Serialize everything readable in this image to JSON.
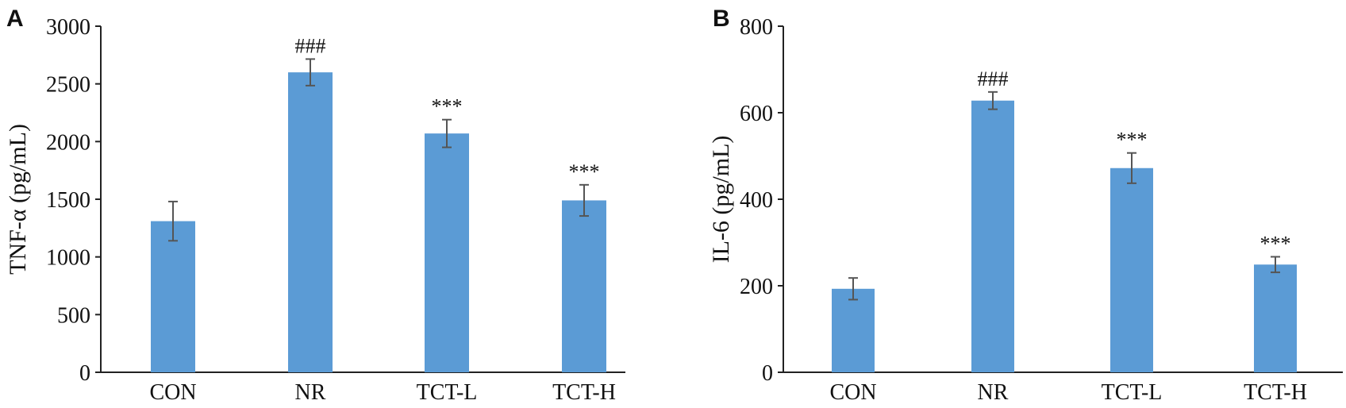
{
  "chart_data": [
    {
      "panel": "A",
      "type": "bar",
      "categories": [
        "CON",
        "NR",
        "TCT-L",
        "TCT-H"
      ],
      "values": [
        1310,
        2600,
        2070,
        1490
      ],
      "errors": [
        170,
        115,
        120,
        135
      ],
      "annotations": [
        "",
        "###",
        "***",
        "***"
      ],
      "ylabel": "TNF-α (pg/mL)",
      "ylim": [
        0,
        3000
      ],
      "yticks": [
        0,
        500,
        1000,
        1500,
        2000,
        2500,
        3000
      ],
      "bar_color": "#5b9bd5",
      "grid": false
    },
    {
      "panel": "B",
      "type": "bar",
      "categories": [
        "CON",
        "NR",
        "TCT-L",
        "TCT-H"
      ],
      "values": [
        193,
        628,
        472,
        249
      ],
      "errors": [
        25,
        20,
        35,
        18
      ],
      "annotations": [
        "",
        "###",
        "***",
        "***"
      ],
      "ylabel": "IL-6 (pg/mL)",
      "ylim": [
        0,
        800
      ],
      "yticks": [
        0,
        200,
        400,
        600,
        800
      ],
      "bar_color": "#5b9bd5",
      "grid": false
    }
  ]
}
